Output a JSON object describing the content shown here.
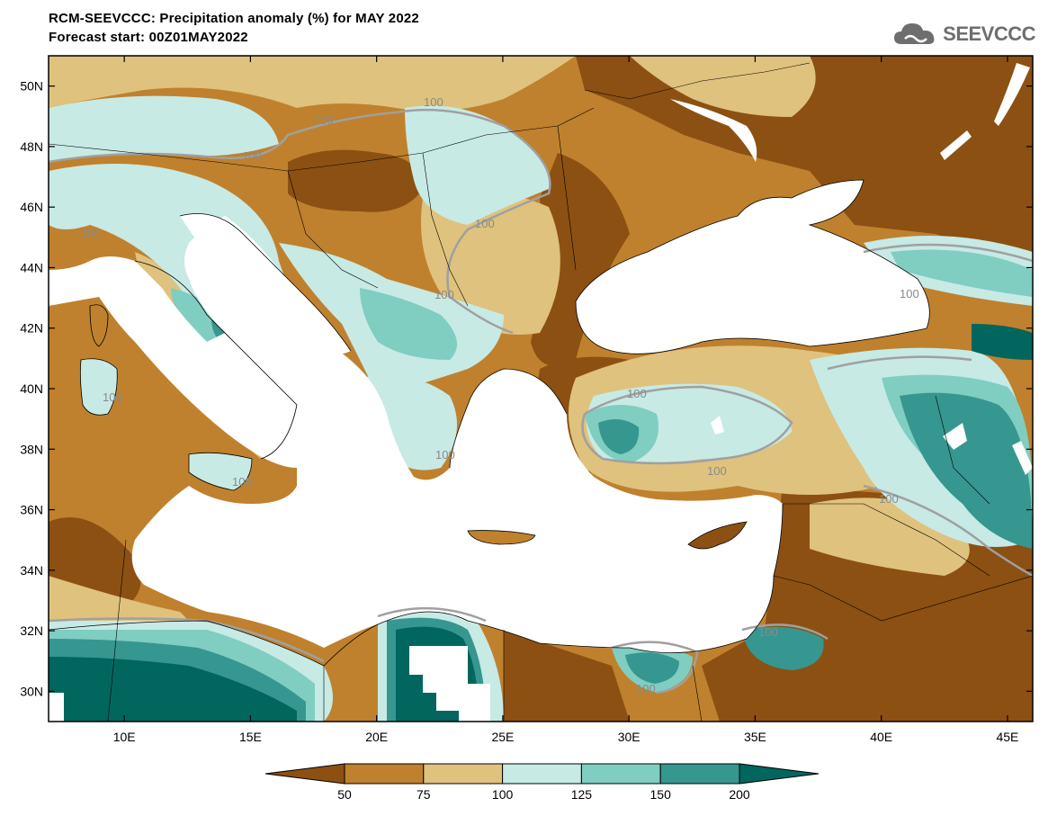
{
  "header": {
    "title": "RCM-SEEVCCC: Precipitation anomaly (%) for MAY 2022",
    "subtitle": "Forecast start: 00Z01MAY2022",
    "logo_text": "SEEVCCC",
    "logo_icon": "cloud-icon"
  },
  "map": {
    "lon_range": [
      7,
      46
    ],
    "lat_range": [
      29,
      51
    ],
    "x_ticks": [
      "10E",
      "15E",
      "20E",
      "25E",
      "30E",
      "35E",
      "40E",
      "45E"
    ],
    "y_ticks": [
      "50N",
      "48N",
      "46N",
      "44N",
      "42N",
      "40N",
      "38N",
      "36N",
      "34N",
      "32N",
      "30N"
    ],
    "contour_labels": [
      "100",
      "100",
      "100",
      "100",
      "100",
      "100",
      "100",
      "100",
      "100",
      "100",
      "100",
      "100",
      "100",
      "100",
      "100"
    ]
  },
  "colorbar": {
    "labels": [
      "50",
      "75",
      "100",
      "125",
      "150",
      "200"
    ],
    "colors": [
      "#8c5012",
      "#bf812d",
      "#dfc27d",
      "#c7eae5",
      "#80cdc1",
      "#35978f",
      "#01665e"
    ]
  }
}
